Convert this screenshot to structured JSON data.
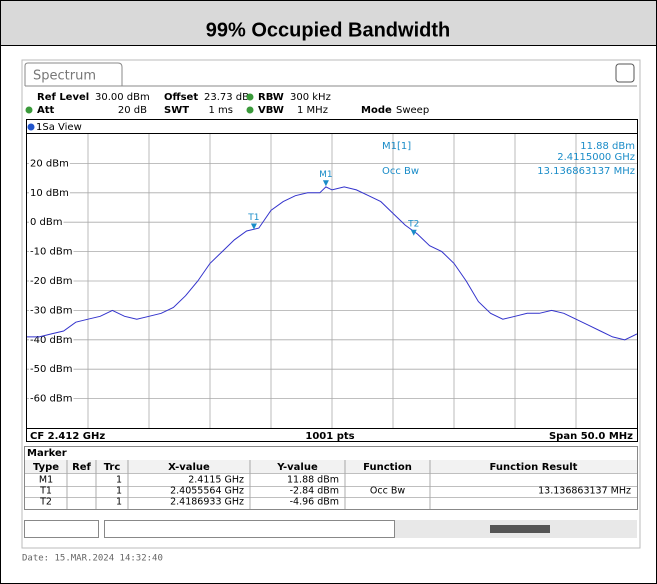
{
  "header": {
    "title": "99% Occupied Bandwidth"
  },
  "tab": "Spectrum",
  "settings": {
    "ref_level_label": "Ref Level",
    "ref_level": "30.00 dBm",
    "offset_label": "Offset",
    "offset": "23.73 dB",
    "rbw_label": "RBW",
    "rbw": "300 kHz",
    "att_label": "Att",
    "att": "20 dB",
    "swt_label": "SWT",
    "swt": "1 ms",
    "vbw_label": "VBW",
    "vbw": "1 MHz",
    "mode_label": "Mode",
    "mode": "Sweep"
  },
  "view": "1Sa View",
  "readout": {
    "marker": "M1[1]",
    "level": "11.88 dBm",
    "freq": "2.4115000 GHz",
    "function": "Occ Bw",
    "result": "13.136863137 MHz"
  },
  "chart_data": {
    "type": "line",
    "color": "#3333cc",
    "grid": true,
    "xlim": [
      2387,
      2437
    ],
    "ylim": [
      -70,
      30
    ],
    "yticks": [
      {
        "value": 20,
        "label": "20 dBm"
      },
      {
        "value": 10,
        "label": "10 dBm"
      },
      {
        "value": 0,
        "label": "0 dBm"
      },
      {
        "value": -10,
        "label": "-10 dBm"
      },
      {
        "value": -20,
        "label": "-20 dBm"
      },
      {
        "value": -30,
        "label": "-30 dBm"
      },
      {
        "value": -40,
        "label": "-40 dBm"
      },
      {
        "value": -50,
        "label": "-50 dBm"
      },
      {
        "value": -60,
        "label": "-60 dBm"
      }
    ],
    "x": [
      2387,
      2388,
      2389,
      2390,
      2391,
      2392,
      2393,
      2394,
      2395,
      2396,
      2397,
      2398,
      2399,
      2400,
      2401,
      2402,
      2403,
      2404,
      2405,
      2406,
      2407,
      2408,
      2409,
      2410,
      2411,
      2411.5,
      2412,
      2413,
      2414,
      2415,
      2416,
      2417,
      2418,
      2419,
      2420,
      2421,
      2422,
      2423,
      2424,
      2425,
      2426,
      2427,
      2428,
      2429,
      2430,
      2431,
      2432,
      2433,
      2434,
      2435,
      2436,
      2437
    ],
    "values": [
      -39,
      -39,
      -38,
      -37,
      -34,
      -33,
      -32,
      -30,
      -32,
      -33,
      -32,
      -31,
      -29,
      -25,
      -20,
      -14,
      -10,
      -6,
      -3,
      -2,
      4,
      7,
      9,
      10,
      10,
      12,
      11,
      12,
      11,
      9,
      7,
      3,
      -1,
      -4,
      -8,
      -10,
      -14,
      -20,
      -27,
      -31,
      -33,
      -32,
      -31,
      -31,
      -30,
      -31,
      -33,
      -35,
      -37,
      -39,
      -40,
      -38
    ],
    "markers": [
      {
        "label": "M1",
        "x": 2411.5,
        "y": 11.88
      },
      {
        "label": "T1",
        "x": 2405.6,
        "y": -2.84
      },
      {
        "label": "T2",
        "x": 2418.7,
        "y": -4.96
      }
    ],
    "bottom_labels": {
      "left": "CF 2.412 GHz",
      "center": "1001 pts",
      "right": "Span 50.0 MHz"
    }
  },
  "marker_table": {
    "title": "Marker",
    "columns": [
      "Type",
      "Ref",
      "Trc",
      "X-value",
      "Y-value",
      "Function",
      "Function Result"
    ],
    "rows": [
      [
        "M1",
        "",
        "1",
        "2.4115 GHz",
        "11.88 dBm",
        "",
        ""
      ],
      [
        "T1",
        "",
        "1",
        "2.4055564 GHz",
        "-2.84 dBm",
        "Occ Bw",
        "13.136863137 MHz"
      ],
      [
        "T2",
        "",
        "1",
        "2.4186933 GHz",
        "-4.96 dBm",
        "",
        ""
      ]
    ]
  },
  "footer": {
    "date": "Date: 15.MAR.2024  14:32:40"
  }
}
